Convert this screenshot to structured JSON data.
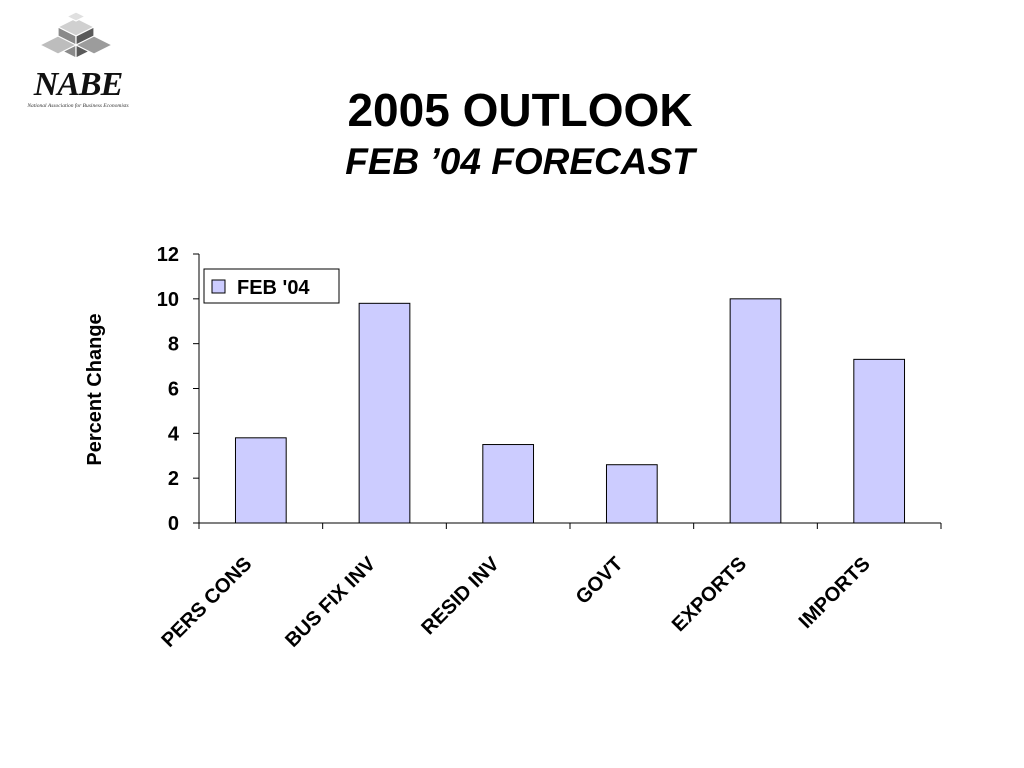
{
  "logo": {
    "wordmark": "NABE",
    "tagline": "National Association for Business Economists"
  },
  "slide": {
    "title": "2005 OUTLOOK",
    "subtitle": "FEB ’04 FORECAST"
  },
  "colors": {
    "bar_fill": "#ccccff",
    "bar_stroke": "#000000",
    "axis": "#000000"
  },
  "chart_data": {
    "type": "bar",
    "title": "",
    "xlabel": "",
    "ylabel": "Percent Change",
    "ylim": [
      0,
      12
    ],
    "yticks": [
      0,
      2,
      4,
      6,
      8,
      10,
      12
    ],
    "grid": false,
    "legend_position": "top-left",
    "categories": [
      "PERS CONS",
      "BUS FIX INV",
      "RESID INV",
      "GOVT",
      "EXPORTS",
      "IMPORTS"
    ],
    "series": [
      {
        "name": "FEB '04",
        "values": [
          3.8,
          9.8,
          3.5,
          2.6,
          10.0,
          7.3
        ]
      }
    ]
  }
}
